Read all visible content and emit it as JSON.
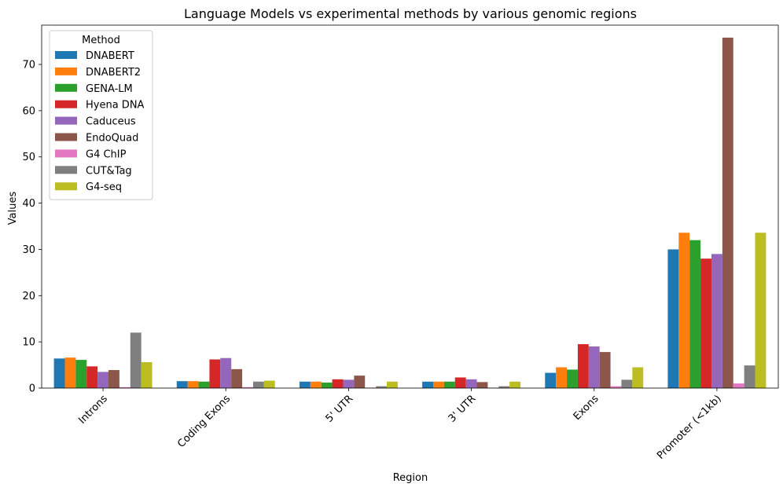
{
  "chart_data": {
    "type": "bar",
    "title": "Language Models vs experimental methods by various genomic regions",
    "xlabel": "Region",
    "ylabel": "Values",
    "ylim": [
      0,
      78.5
    ],
    "yticks": [
      0,
      10,
      20,
      30,
      40,
      50,
      60,
      70
    ],
    "categories": [
      "Introns",
      "Coding Exons",
      "5' UTR",
      "3' UTR",
      "Exons",
      "Promoter (<1kb)"
    ],
    "legend": {
      "title": "Method",
      "position": "top-left"
    },
    "series": [
      {
        "name": "DNABERT",
        "color": "#1f77b4",
        "values": [
          6.4,
          1.5,
          1.4,
          1.4,
          3.3,
          30.0
        ]
      },
      {
        "name": "DNABERT2",
        "color": "#ff7f0e",
        "values": [
          6.6,
          1.5,
          1.4,
          1.4,
          4.5,
          33.6
        ]
      },
      {
        "name": "GENA-LM",
        "color": "#2ca02c",
        "values": [
          6.1,
          1.4,
          1.2,
          1.4,
          4.0,
          32.0
        ]
      },
      {
        "name": "Hyena DNA",
        "color": "#d62728",
        "values": [
          4.7,
          6.2,
          1.9,
          2.3,
          9.5,
          28.0
        ]
      },
      {
        "name": "Caduceus",
        "color": "#9467bd",
        "values": [
          3.5,
          6.5,
          1.8,
          1.9,
          9.0,
          29.0
        ]
      },
      {
        "name": "EndoQuad",
        "color": "#8c564b",
        "values": [
          3.9,
          4.1,
          2.7,
          1.3,
          7.8,
          75.8
        ]
      },
      {
        "name": "G4 ChIP",
        "color": "#e377c2",
        "values": [
          0.2,
          0.2,
          0.1,
          0.1,
          0.4,
          1.0
        ]
      },
      {
        "name": "CUT&Tag",
        "color": "#7f7f7f",
        "values": [
          12.0,
          1.4,
          0.4,
          0.4,
          1.8,
          4.9
        ]
      },
      {
        "name": "G4-seq",
        "color": "#bcbd22",
        "values": [
          5.6,
          1.6,
          1.4,
          1.4,
          4.5,
          33.6
        ]
      }
    ]
  }
}
